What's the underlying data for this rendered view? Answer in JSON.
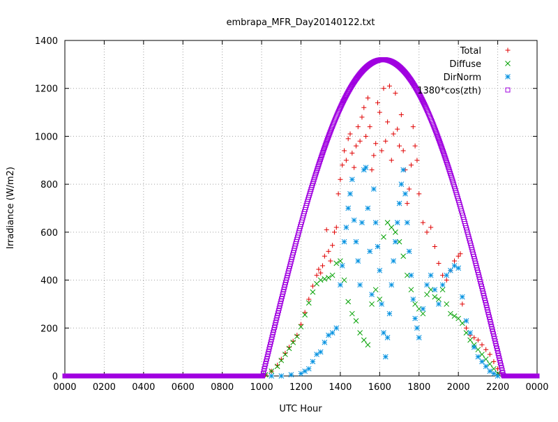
{
  "chart_data": {
    "type": "scatter",
    "title": "embrapa_MFR_Day20140122.txt",
    "xlabel": "UTC Hour",
    "ylabel": "Irradiance (W/m2)",
    "xlim": [
      0,
      24
    ],
    "ylim": [
      0,
      1400
    ],
    "x_ticks": [
      0,
      2,
      4,
      6,
      8,
      10,
      12,
      14,
      16,
      18,
      20,
      22,
      24
    ],
    "x_tick_labels": [
      "0000",
      "0200",
      "0400",
      "0600",
      "0800",
      "1000",
      "1200",
      "1400",
      "1600",
      "1800",
      "2000",
      "2200",
      "0000"
    ],
    "y_ticks": [
      0,
      200,
      400,
      600,
      800,
      1000,
      1200,
      1400
    ],
    "y_tick_labels": [
      "0",
      "200",
      "400",
      "600",
      "800",
      "1000",
      "1200",
      "1400"
    ],
    "grid": true,
    "legend_position": "top-right",
    "series": [
      {
        "name": "Total",
        "color": "#e00000",
        "marker": "plus",
        "points": [
          [
            10.2,
            5
          ],
          [
            10.5,
            20
          ],
          [
            10.8,
            45
          ],
          [
            11.0,
            70
          ],
          [
            11.2,
            95
          ],
          [
            11.4,
            120
          ],
          [
            11.6,
            145
          ],
          [
            11.8,
            170
          ],
          [
            12.0,
            215
          ],
          [
            12.2,
            265
          ],
          [
            12.4,
            320
          ],
          [
            12.6,
            375
          ],
          [
            12.8,
            420
          ],
          [
            12.9,
            445
          ],
          [
            13.0,
            430
          ],
          [
            13.1,
            460
          ],
          [
            13.2,
            500
          ],
          [
            13.3,
            610
          ],
          [
            13.4,
            520
          ],
          [
            13.5,
            480
          ],
          [
            13.6,
            545
          ],
          [
            13.7,
            600
          ],
          [
            13.8,
            620
          ],
          [
            13.9,
            760
          ],
          [
            14.0,
            820
          ],
          [
            14.1,
            880
          ],
          [
            14.2,
            940
          ],
          [
            14.3,
            900
          ],
          [
            14.4,
            990
          ],
          [
            14.5,
            1010
          ],
          [
            14.6,
            930
          ],
          [
            14.7,
            870
          ],
          [
            14.8,
            960
          ],
          [
            14.9,
            1040
          ],
          [
            15.0,
            980
          ],
          [
            15.1,
            1080
          ],
          [
            15.2,
            1120
          ],
          [
            15.3,
            1000
          ],
          [
            15.4,
            1160
          ],
          [
            15.5,
            1040
          ],
          [
            15.6,
            860
          ],
          [
            15.7,
            920
          ],
          [
            15.8,
            970
          ],
          [
            15.9,
            1140
          ],
          [
            16.0,
            1100
          ],
          [
            16.1,
            940
          ],
          [
            16.2,
            1200
          ],
          [
            16.3,
            980
          ],
          [
            16.4,
            1060
          ],
          [
            16.5,
            1210
          ],
          [
            16.6,
            900
          ],
          [
            16.7,
            1010
          ],
          [
            16.8,
            1180
          ],
          [
            16.9,
            1030
          ],
          [
            17.0,
            960
          ],
          [
            17.1,
            1090
          ],
          [
            17.2,
            940
          ],
          [
            17.3,
            860
          ],
          [
            17.4,
            720
          ],
          [
            17.5,
            780
          ],
          [
            17.6,
            880
          ],
          [
            17.7,
            1040
          ],
          [
            17.8,
            960
          ],
          [
            17.9,
            900
          ],
          [
            18.0,
            760
          ],
          [
            18.2,
            640
          ],
          [
            18.4,
            600
          ],
          [
            18.6,
            620
          ],
          [
            18.8,
            540
          ],
          [
            19.0,
            470
          ],
          [
            19.2,
            420
          ],
          [
            19.4,
            400
          ],
          [
            19.6,
            440
          ],
          [
            19.8,
            480
          ],
          [
            20.0,
            500
          ],
          [
            20.1,
            510
          ],
          [
            20.2,
            300
          ],
          [
            20.4,
            200
          ],
          [
            20.6,
            170
          ],
          [
            20.8,
            160
          ],
          [
            21.0,
            150
          ],
          [
            21.2,
            130
          ],
          [
            21.4,
            110
          ],
          [
            21.6,
            90
          ],
          [
            21.8,
            60
          ],
          [
            22.0,
            30
          ],
          [
            22.1,
            10
          ]
        ]
      },
      {
        "name": "Diffuse",
        "color": "#00a000",
        "marker": "cross",
        "points": [
          [
            10.2,
            5
          ],
          [
            10.5,
            20
          ],
          [
            10.8,
            40
          ],
          [
            11.0,
            65
          ],
          [
            11.2,
            90
          ],
          [
            11.4,
            115
          ],
          [
            11.6,
            140
          ],
          [
            11.8,
            165
          ],
          [
            12.0,
            205
          ],
          [
            12.2,
            255
          ],
          [
            12.4,
            305
          ],
          [
            12.6,
            350
          ],
          [
            12.8,
            385
          ],
          [
            13.0,
            400
          ],
          [
            13.2,
            405
          ],
          [
            13.4,
            410
          ],
          [
            13.6,
            420
          ],
          [
            13.8,
            470
          ],
          [
            14.0,
            480
          ],
          [
            14.2,
            400
          ],
          [
            14.4,
            310
          ],
          [
            14.6,
            260
          ],
          [
            14.8,
            230
          ],
          [
            15.0,
            180
          ],
          [
            15.2,
            150
          ],
          [
            15.4,
            130
          ],
          [
            15.6,
            300
          ],
          [
            15.8,
            360
          ],
          [
            16.0,
            320
          ],
          [
            16.2,
            580
          ],
          [
            16.4,
            640
          ],
          [
            16.6,
            620
          ],
          [
            16.8,
            600
          ],
          [
            17.0,
            560
          ],
          [
            17.2,
            500
          ],
          [
            17.4,
            420
          ],
          [
            17.6,
            360
          ],
          [
            17.8,
            300
          ],
          [
            18.0,
            280
          ],
          [
            18.2,
            260
          ],
          [
            18.4,
            340
          ],
          [
            18.6,
            360
          ],
          [
            18.8,
            330
          ],
          [
            19.0,
            320
          ],
          [
            19.2,
            360
          ],
          [
            19.4,
            300
          ],
          [
            19.6,
            260
          ],
          [
            19.8,
            250
          ],
          [
            20.0,
            240
          ],
          [
            20.2,
            220
          ],
          [
            20.4,
            180
          ],
          [
            20.6,
            150
          ],
          [
            20.8,
            130
          ],
          [
            21.0,
            110
          ],
          [
            21.2,
            90
          ],
          [
            21.4,
            70
          ],
          [
            21.6,
            50
          ],
          [
            21.8,
            30
          ],
          [
            22.0,
            10
          ]
        ]
      },
      {
        "name": "DirNorm",
        "color": "#0090e0",
        "marker": "star",
        "points": [
          [
            10.5,
            0
          ],
          [
            11.0,
            0
          ],
          [
            11.5,
            5
          ],
          [
            12.0,
            10
          ],
          [
            12.2,
            20
          ],
          [
            12.4,
            30
          ],
          [
            12.6,
            60
          ],
          [
            12.8,
            90
          ],
          [
            13.0,
            100
          ],
          [
            13.2,
            140
          ],
          [
            13.4,
            170
          ],
          [
            13.6,
            180
          ],
          [
            13.8,
            200
          ],
          [
            14.0,
            380
          ],
          [
            14.1,
            460
          ],
          [
            14.2,
            560
          ],
          [
            14.3,
            620
          ],
          [
            14.4,
            700
          ],
          [
            14.5,
            760
          ],
          [
            14.6,
            820
          ],
          [
            14.7,
            650
          ],
          [
            14.8,
            560
          ],
          [
            14.9,
            480
          ],
          [
            15.0,
            380
          ],
          [
            15.1,
            640
          ],
          [
            15.2,
            860
          ],
          [
            15.3,
            870
          ],
          [
            15.4,
            700
          ],
          [
            15.5,
            520
          ],
          [
            15.6,
            340
          ],
          [
            15.7,
            780
          ],
          [
            15.8,
            640
          ],
          [
            15.9,
            540
          ],
          [
            16.0,
            440
          ],
          [
            16.1,
            300
          ],
          [
            16.2,
            180
          ],
          [
            16.3,
            80
          ],
          [
            16.4,
            160
          ],
          [
            16.5,
            260
          ],
          [
            16.6,
            380
          ],
          [
            16.7,
            480
          ],
          [
            16.8,
            560
          ],
          [
            16.9,
            640
          ],
          [
            17.0,
            720
          ],
          [
            17.1,
            800
          ],
          [
            17.2,
            860
          ],
          [
            17.3,
            760
          ],
          [
            17.4,
            640
          ],
          [
            17.5,
            520
          ],
          [
            17.6,
            420
          ],
          [
            17.7,
            320
          ],
          [
            17.8,
            240
          ],
          [
            17.9,
            200
          ],
          [
            18.0,
            160
          ],
          [
            18.2,
            280
          ],
          [
            18.4,
            380
          ],
          [
            18.6,
            420
          ],
          [
            18.8,
            360
          ],
          [
            19.0,
            300
          ],
          [
            19.2,
            380
          ],
          [
            19.4,
            420
          ],
          [
            19.6,
            440
          ],
          [
            19.8,
            460
          ],
          [
            20.0,
            450
          ],
          [
            20.2,
            330
          ],
          [
            20.4,
            230
          ],
          [
            20.6,
            180
          ],
          [
            20.8,
            120
          ],
          [
            21.0,
            80
          ],
          [
            21.2,
            60
          ],
          [
            21.4,
            40
          ],
          [
            21.6,
            20
          ],
          [
            21.8,
            10
          ],
          [
            22.0,
            0
          ]
        ]
      },
      {
        "name": "1380*cos(zth)",
        "color": "#a000e0",
        "marker": "open-square",
        "curve": {
          "sunrise": 10.05,
          "sunset": 22.3,
          "peak": 1320,
          "peak_hour": 16.17
        }
      }
    ]
  }
}
